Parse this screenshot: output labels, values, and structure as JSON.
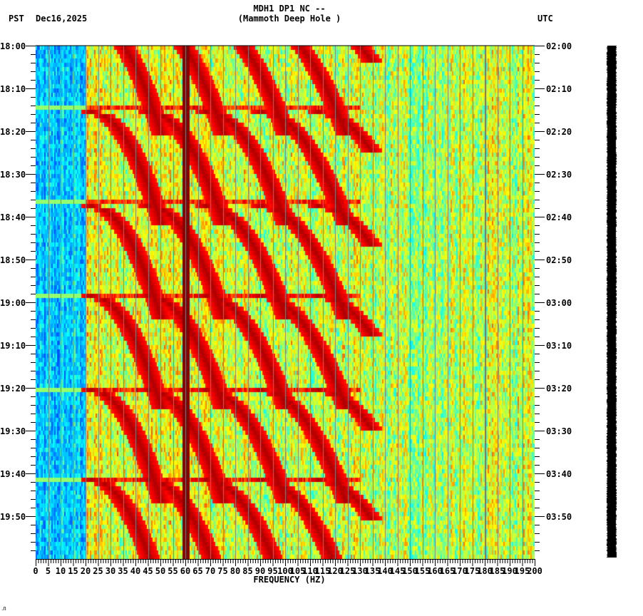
{
  "header": {
    "title_line1": "MDH1 DP1 NC --",
    "title_line2": "(Mammoth Deep Hole )",
    "left_timezone": "PST",
    "date": "Dec16,2025",
    "right_timezone": "UTC"
  },
  "footer": {
    "corner_mark": "․Ո"
  },
  "chart_data": {
    "type": "heatmap",
    "title": "MDH1 DP1 NC -- (Mammoth Deep Hole )",
    "subtitle": "PST Dec16,2025",
    "xlabel": "FREQUENCY (HZ)",
    "ylabel_left": "PST",
    "ylabel_right": "UTC",
    "xlim": [
      0,
      200
    ],
    "x_ticks": [
      0,
      5,
      10,
      15,
      20,
      25,
      30,
      35,
      40,
      45,
      50,
      55,
      60,
      65,
      70,
      75,
      80,
      85,
      90,
      95,
      100,
      105,
      110,
      115,
      120,
      125,
      130,
      135,
      140,
      145,
      150,
      155,
      160,
      165,
      170,
      175,
      180,
      185,
      190,
      195,
      200
    ],
    "y_range_pst": [
      "18:00",
      "20:00"
    ],
    "y_ticks_left": [
      "18:00",
      "18:10",
      "18:20",
      "18:30",
      "18:40",
      "18:50",
      "19:00",
      "19:10",
      "19:20",
      "19:30",
      "19:40",
      "19:50"
    ],
    "y_ticks_right": [
      "02:00",
      "02:10",
      "02:20",
      "02:30",
      "02:40",
      "02:50",
      "03:00",
      "03:10",
      "03:20",
      "03:30",
      "03:40",
      "03:50"
    ],
    "minor_ticks_per_10min": 5,
    "grid": {
      "vertical_every_hz": 5,
      "color": "#808080"
    },
    "colormap": [
      "#0050ff",
      "#00b4ff",
      "#00ffff",
      "#80ff80",
      "#ffff00",
      "#ff8000",
      "#ff0000",
      "#800000"
    ],
    "features": {
      "constant_line_hz": 60,
      "secondary_line_hz": 180,
      "chirp_cycles_start_min": [
        -6,
        15,
        37,
        58,
        80,
        101
      ],
      "chirp_cycle_period_min": 21.5,
      "chirp_start_freq_hz": [
        22,
        45,
        68,
        90,
        113,
        135
      ],
      "chirp_freq_drift_hz": 28,
      "low_energy_band_hz": [
        0,
        20
      ],
      "high_energy_band_hz": [
        20,
        130
      ]
    }
  }
}
